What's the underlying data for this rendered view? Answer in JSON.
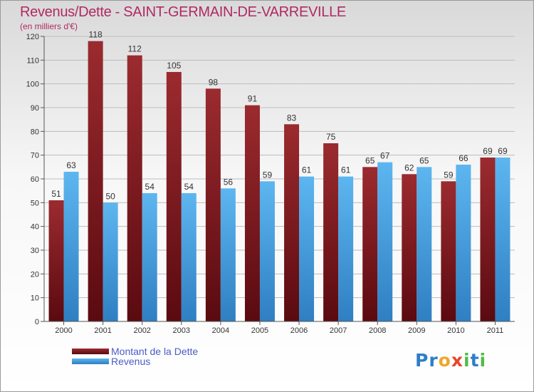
{
  "header": {
    "title": "Revenus/Dette - SAINT-GERMAIN-DE-VARREVILLE",
    "subtitle": "(en milliers d'€)"
  },
  "colors": {
    "title": "#b02a63",
    "dette_top": "#9b2b2f",
    "dette_bottom": "#5a0a10",
    "revenus_top": "#5db6f0",
    "revenus_bottom": "#2f7fc2",
    "grid": "#bcbcbc",
    "legend_text": "#4a5cc7"
  },
  "chart_data": {
    "type": "bar",
    "categories": [
      "2000",
      "2001",
      "2002",
      "2003",
      "2004",
      "2005",
      "2006",
      "2007",
      "2008",
      "2009",
      "2010",
      "2011"
    ],
    "series": [
      {
        "name": "Montant de la Dette",
        "values": [
          51,
          118,
          112,
          105,
          98,
          91,
          83,
          75,
          65,
          62,
          59,
          69
        ]
      },
      {
        "name": "Revenus",
        "values": [
          63,
          50,
          54,
          54,
          56,
          59,
          61,
          61,
          67,
          65,
          66,
          69
        ]
      }
    ],
    "ylim": [
      0,
      120
    ],
    "yticks": [
      0,
      10,
      20,
      30,
      40,
      50,
      60,
      70,
      80,
      90,
      100,
      110,
      120
    ],
    "grid": true,
    "legend_position": "bottom-left"
  },
  "logo": {
    "text": "Proxiti",
    "letters": [
      {
        "ch": "P",
        "color": "#2e7ec7"
      },
      {
        "ch": "r",
        "color": "#2e7ec7"
      },
      {
        "ch": "o",
        "color": "#f0a52a"
      },
      {
        "ch": "x",
        "color": "#e8452c"
      },
      {
        "ch": "i",
        "color": "#55b94a"
      },
      {
        "ch": "t",
        "color": "#2e7ec7"
      },
      {
        "ch": "i",
        "color": "#55b94a"
      }
    ]
  }
}
